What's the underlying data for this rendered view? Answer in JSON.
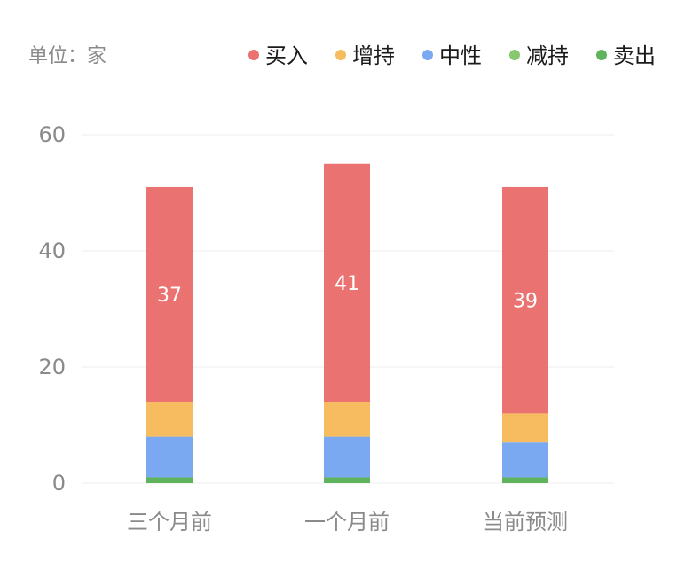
{
  "chart_data": {
    "type": "bar",
    "stacked": true,
    "unit_label": "单位：家",
    "categories": [
      "三个月前",
      "一个月前",
      "当前预测"
    ],
    "series": [
      {
        "name": "卖出",
        "color": "#5fb35c",
        "values": [
          1,
          1,
          1
        ]
      },
      {
        "name": "减持",
        "color": "#86c96f",
        "values": [
          0,
          0,
          0
        ]
      },
      {
        "name": "中性",
        "color": "#7aa9f1",
        "values": [
          7,
          7,
          6
        ]
      },
      {
        "name": "增持",
        "color": "#f6bc5f",
        "values": [
          6,
          6,
          5
        ]
      },
      {
        "name": "买入",
        "color": "#ea7270",
        "values": [
          37,
          41,
          39
        ]
      }
    ],
    "legend_order": [
      "买入",
      "增持",
      "中性",
      "减持",
      "卖出"
    ],
    "data_labels_series": "买入",
    "yticks": [
      0,
      20,
      40,
      60
    ],
    "ylim": [
      0,
      60
    ],
    "grid": true,
    "legend_position": "top-right"
  }
}
